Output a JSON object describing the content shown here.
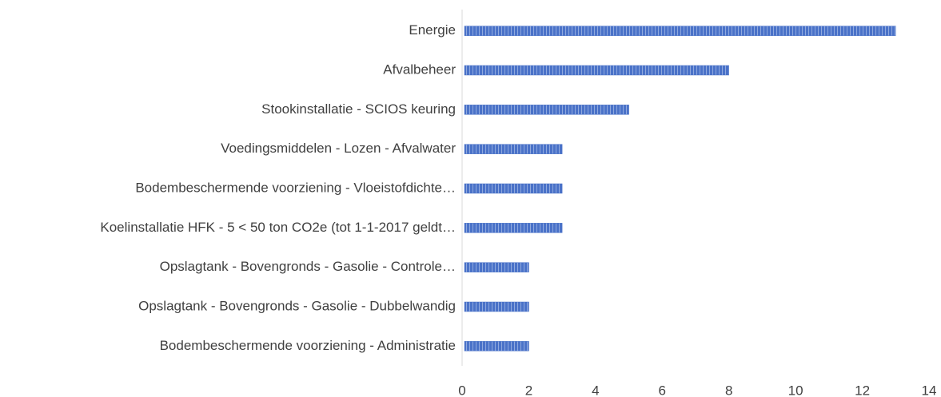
{
  "chart_data": {
    "type": "bar",
    "orientation": "horizontal",
    "categories": [
      "Energie",
      "Afvalbeheer",
      "Stookinstallatie - SCIOS keuring",
      "Voedingsmiddelen - Lozen - Afvalwater",
      "Bodembeschermende voorziening - Vloeistofdichte…",
      "Koelinstallatie HFK - 5 < 50 ton CO2e (tot 1-1-2017 geldt…",
      "Opslagtank - Bovengronds - Gasolie - Controle…",
      "Opslagtank - Bovengronds - Gasolie - Dubbelwandig",
      "Bodembeschermende voorziening - Administratie"
    ],
    "values": [
      13,
      8,
      5,
      3,
      3,
      3,
      2,
      2,
      2
    ],
    "color": "#4a72c8",
    "xlim": [
      0,
      14
    ],
    "xticks": [
      0,
      2,
      4,
      6,
      8,
      10,
      12,
      14
    ],
    "grid": false
  }
}
